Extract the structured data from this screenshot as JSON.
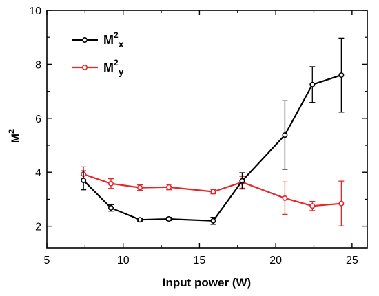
{
  "chart_data": {
    "type": "line",
    "title": "",
    "xlabel": "Input power (W)",
    "ylabel": {
      "base": "M",
      "sup": "2"
    },
    "xlim": [
      5,
      26
    ],
    "ylim": [
      1.2,
      10
    ],
    "xticks": [
      5,
      10,
      15,
      20,
      25
    ],
    "yticks": [
      2,
      4,
      6,
      8,
      10
    ],
    "grid": false,
    "legend_position": "top-left",
    "series": [
      {
        "name": "M2x",
        "legend": {
          "base": "M",
          "sup": "2",
          "sub": "x"
        },
        "color": "#000000",
        "x": [
          7.4,
          9.2,
          11.1,
          13.0,
          15.9,
          17.8,
          20.6,
          22.4,
          24.3
        ],
        "y": [
          3.7,
          2.68,
          2.24,
          2.27,
          2.2,
          3.68,
          5.38,
          7.25,
          7.6
        ],
        "err": [
          0.35,
          0.12,
          0.05,
          0.06,
          0.13,
          0.3,
          1.27,
          0.66,
          1.37
        ]
      },
      {
        "name": "M2y",
        "legend": {
          "base": "M",
          "sup": "2",
          "sub": "y"
        },
        "color": "#e8262a",
        "x": [
          7.4,
          9.2,
          11.1,
          13.0,
          15.9,
          17.8,
          20.6,
          22.4,
          24.3
        ],
        "y": [
          3.93,
          3.58,
          3.43,
          3.45,
          3.28,
          3.63,
          3.04,
          2.75,
          2.84
        ],
        "err": [
          0.27,
          0.18,
          0.1,
          0.1,
          0.08,
          0.22,
          0.6,
          0.17,
          0.83
        ]
      }
    ]
  }
}
